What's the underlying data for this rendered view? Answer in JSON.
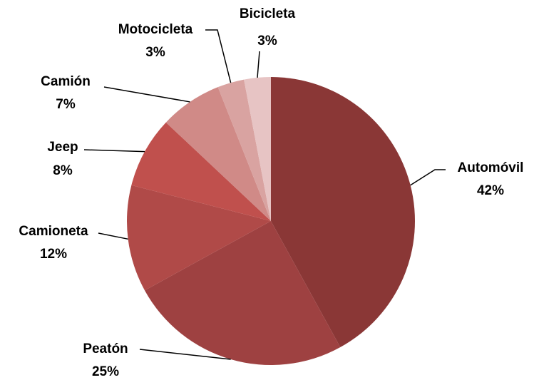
{
  "chart_data": {
    "type": "pie",
    "categories": [
      "Automóvil",
      "Peatón",
      "Camioneta",
      "Jeep",
      "Camión",
      "Motocicleta",
      "Bicicleta"
    ],
    "values": [
      42,
      25,
      12,
      8,
      7,
      3,
      3
    ],
    "value_labels": [
      "42%",
      "25%",
      "12%",
      "8%",
      "7%",
      "3%",
      "3%"
    ],
    "colors": [
      "#8a3736",
      "#9e4141",
      "#b04a48",
      "#c0504d",
      "#d08a87",
      "#d9a3a1",
      "#e7c4c4"
    ]
  }
}
